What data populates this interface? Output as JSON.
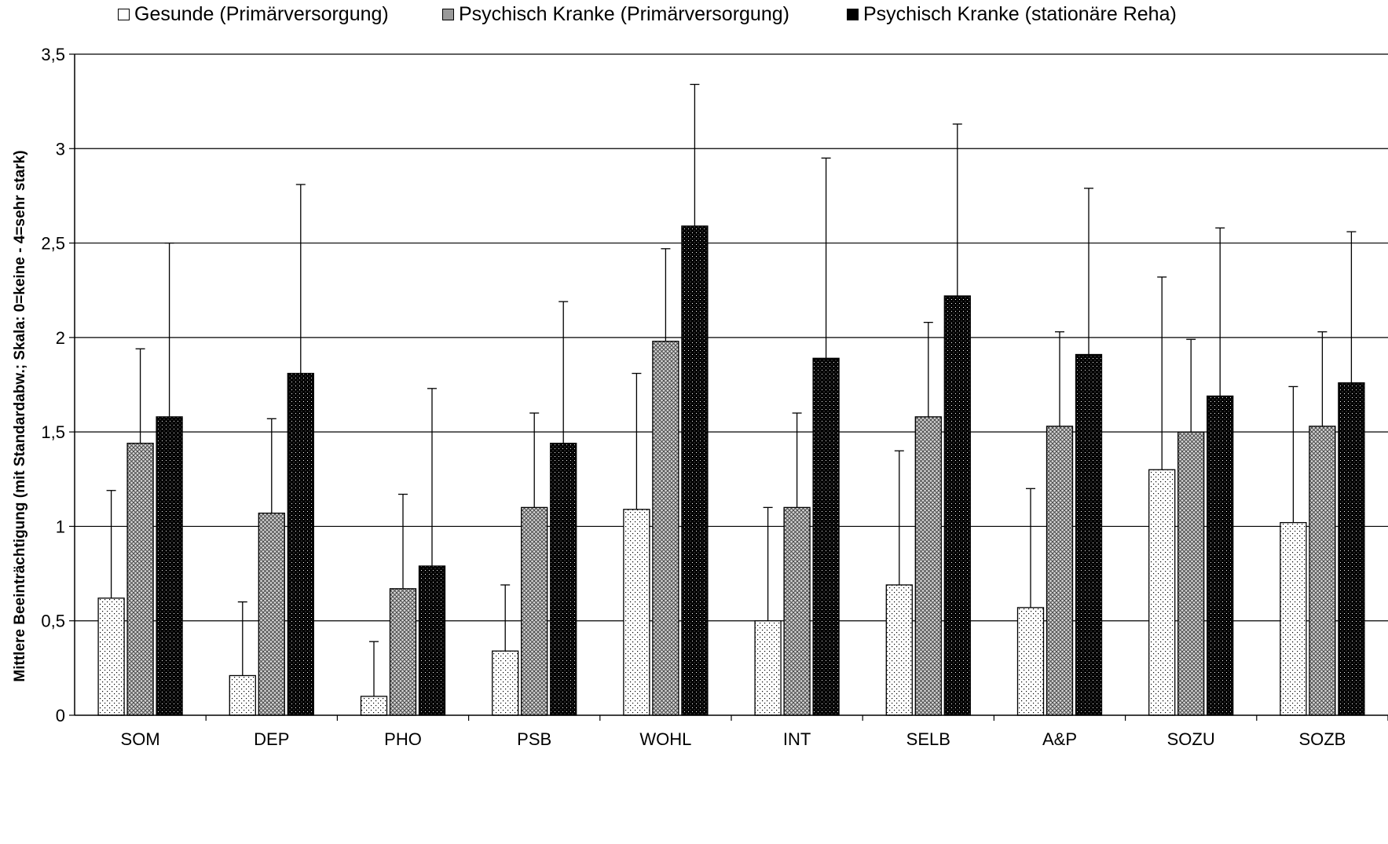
{
  "chart_data": {
    "type": "bar",
    "title": "",
    "xlabel": "",
    "ylabel": "Mittlere Beeinträchtigung (mit Standardabw.; Skala: 0=keine - 4=sehr stark)",
    "ylim": [
      0,
      3.5
    ],
    "yticks": [
      "0",
      "0,5",
      "1",
      "1,5",
      "2",
      "2,5",
      "3",
      "3,5"
    ],
    "grid": true,
    "legend_position": "top",
    "categories": [
      "SOM",
      "DEP",
      "PHO",
      "PSB",
      "WOHL",
      "INT",
      "SELB",
      "A&P",
      "SOZU",
      "SOZB"
    ],
    "series": [
      {
        "name": "Gesunde (Primärversorgung)",
        "pattern": "dots",
        "values": [
          0.62,
          0.21,
          0.1,
          0.34,
          1.09,
          0.5,
          0.69,
          0.57,
          1.3,
          1.02
        ],
        "error_upper": [
          1.19,
          0.6,
          0.39,
          0.69,
          1.81,
          1.1,
          1.4,
          1.2,
          2.32,
          1.74
        ]
      },
      {
        "name": "Psychisch Kranke (Primärversorgung)",
        "pattern": "crosshatch",
        "values": [
          1.44,
          1.07,
          0.67,
          1.1,
          1.98,
          1.1,
          1.58,
          1.53,
          1.5,
          1.53
        ],
        "error_upper": [
          1.94,
          1.57,
          1.17,
          1.6,
          2.47,
          1.6,
          2.08,
          2.03,
          1.99,
          2.03
        ]
      },
      {
        "name": "Psychisch Kranke (stationäre Reha)",
        "pattern": "dense-dark",
        "values": [
          1.58,
          1.81,
          0.79,
          1.44,
          2.59,
          1.89,
          2.22,
          1.91,
          1.69,
          1.76
        ],
        "error_upper": [
          2.5,
          2.81,
          1.73,
          2.19,
          3.34,
          2.95,
          3.13,
          2.79,
          2.58,
          2.56
        ]
      }
    ]
  }
}
